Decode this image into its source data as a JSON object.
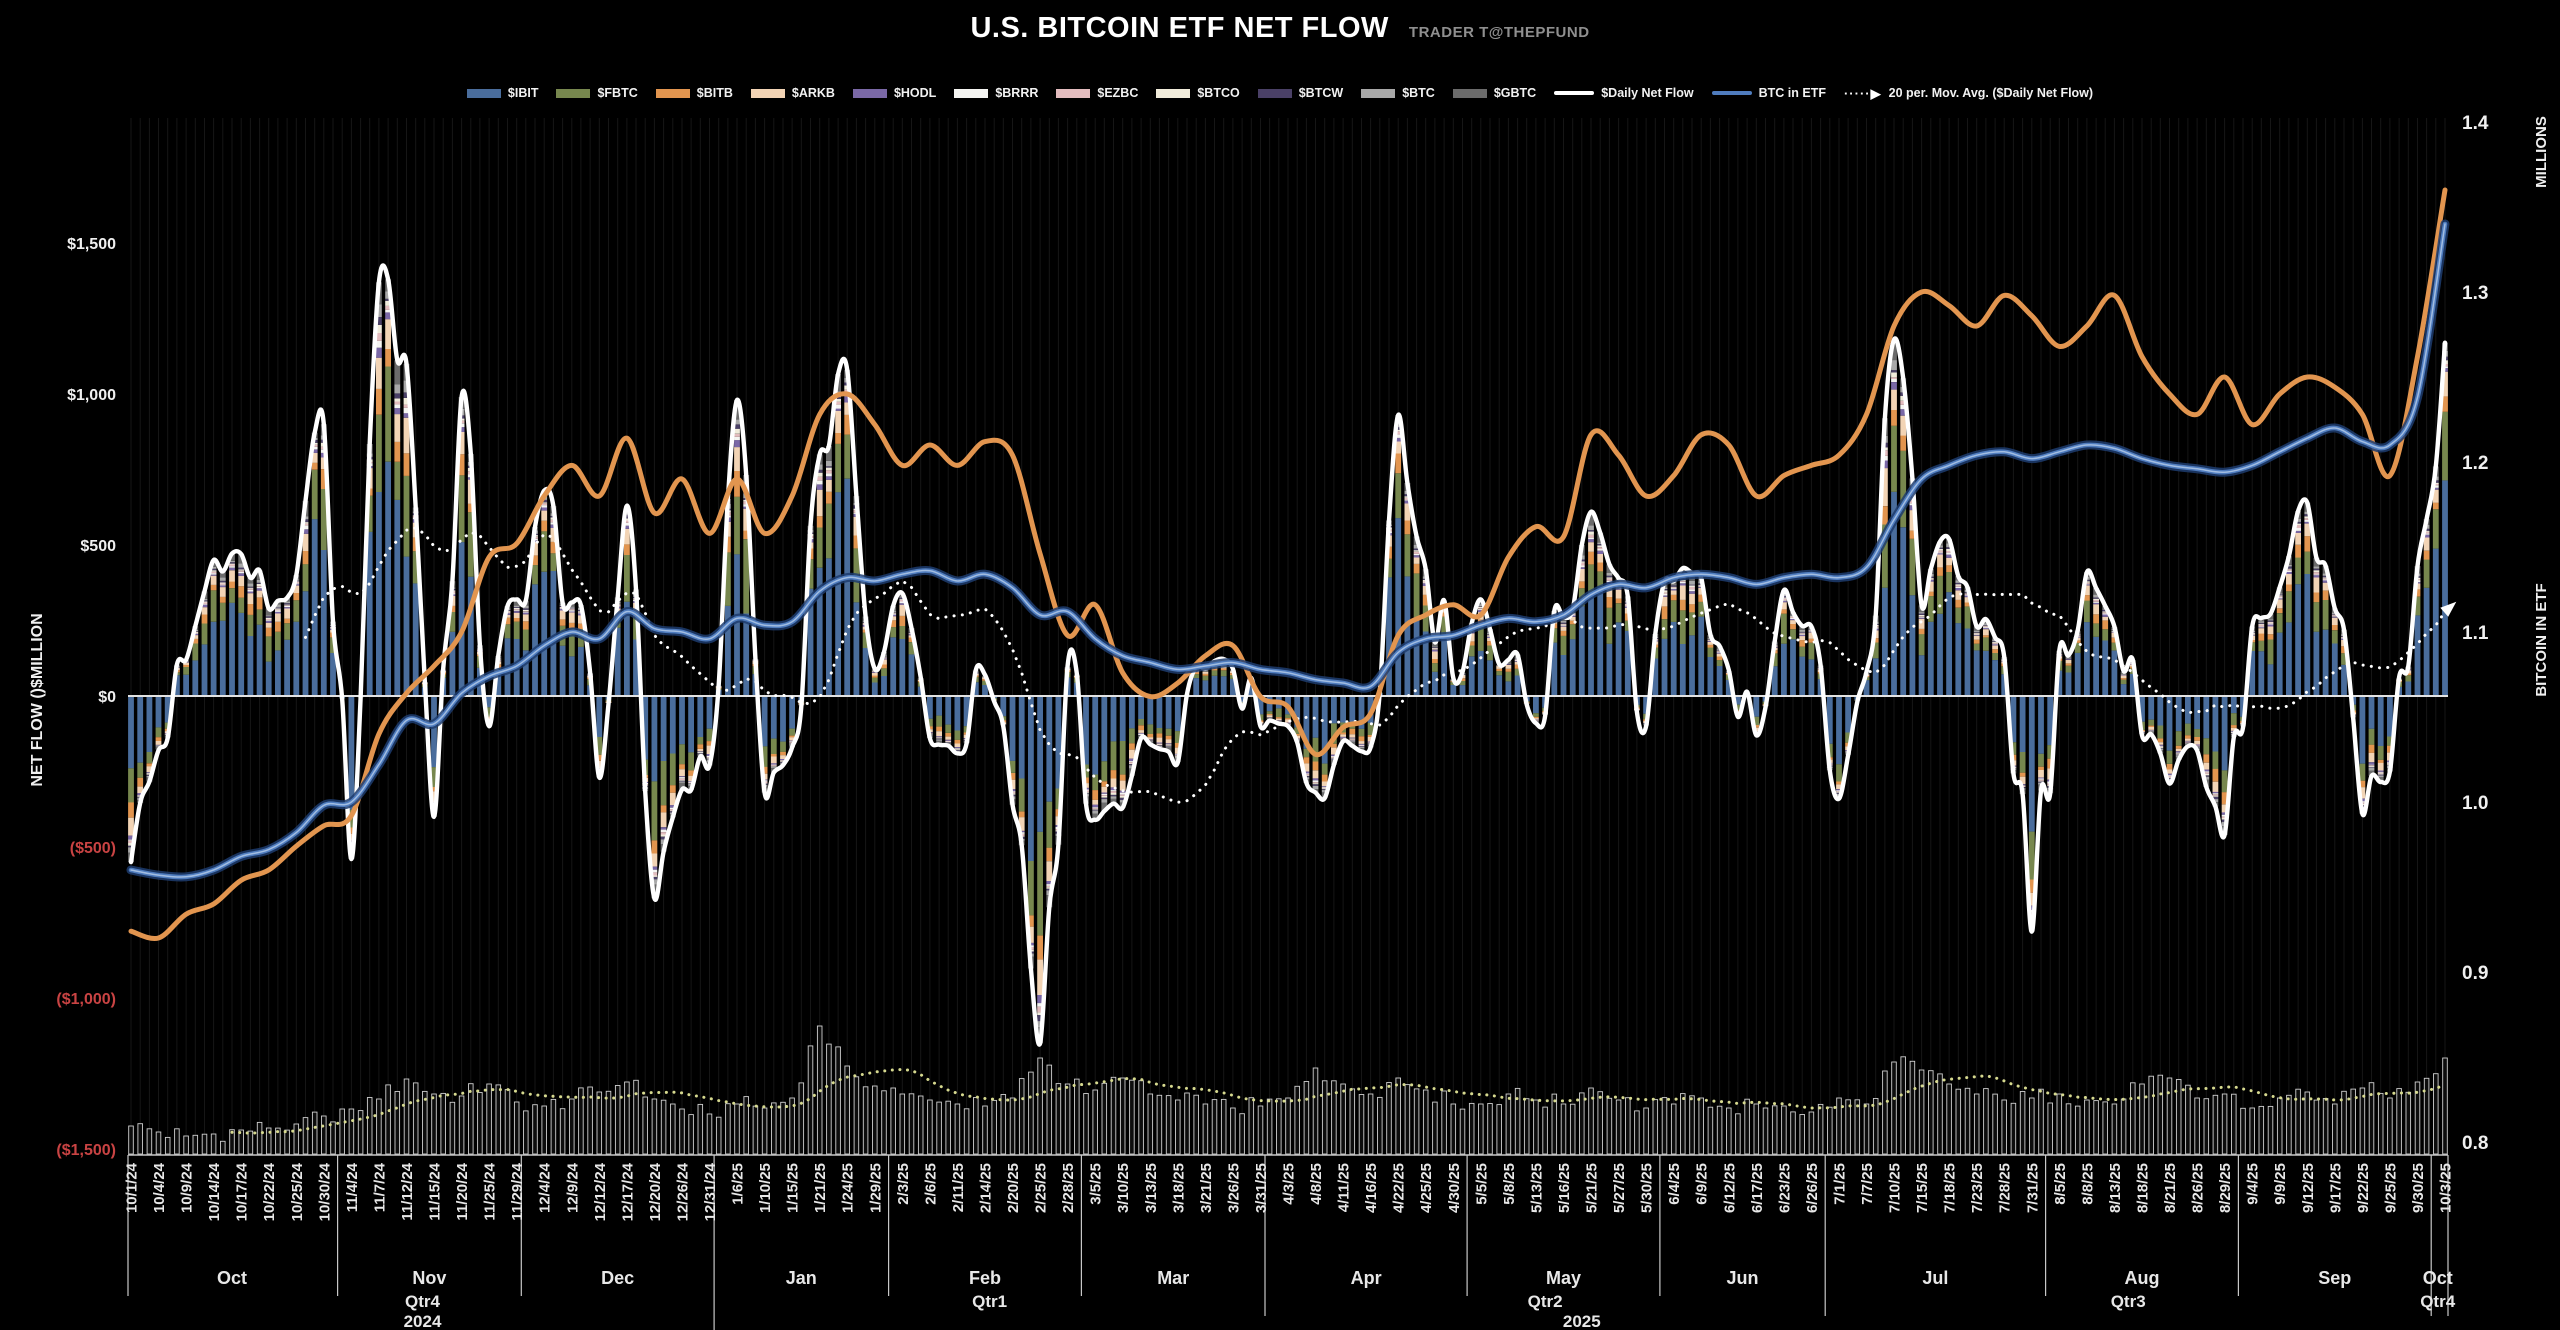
{
  "header": {
    "title": "U.S. BITCOIN ETF NET FLOW",
    "credit": "TRADER T@THEPFUND"
  },
  "legend": {
    "items": [
      {
        "label": "$IBIT",
        "color": "#4a6d9c",
        "swatch": "bar"
      },
      {
        "label": "$FBTC",
        "color": "#77874e",
        "swatch": "bar"
      },
      {
        "label": "$BITB",
        "color": "#e2954f",
        "swatch": "bar"
      },
      {
        "label": "$ARKB",
        "color": "#f2d4b5",
        "swatch": "bar"
      },
      {
        "label": "$HODL",
        "color": "#7a68a6",
        "swatch": "bar"
      },
      {
        "label": "$BRRR",
        "color": "#f5f5f2",
        "swatch": "bar"
      },
      {
        "label": "$EZBC",
        "color": "#e3bcbe",
        "swatch": "bar"
      },
      {
        "label": "$BTCO",
        "color": "#f1ecdb",
        "swatch": "bar"
      },
      {
        "label": "$BTCW",
        "color": "#4a4066",
        "swatch": "bar"
      },
      {
        "label": "$BTC",
        "color": "#a8a8a8",
        "swatch": "bar"
      },
      {
        "label": "$GBTC",
        "color": "#6b6b6b",
        "swatch": "bar"
      },
      {
        "label": "$Daily Net Flow",
        "color": "#ffffff",
        "swatch": "line"
      },
      {
        "label": "BTC in ETF",
        "color": "#4f7cbe",
        "swatch": "line"
      },
      {
        "label": "20 per. Mov. Avg. ($Daily Net Flow)",
        "color": "#ffffff",
        "swatch": "dotted-arrow"
      }
    ]
  },
  "colors": {
    "background": "#000000",
    "text": "#e8e8e8",
    "positive_label": "#f0f0f0",
    "negative_label": "#c94343",
    "grid": "#161616",
    "zero_line": "#e3e3e3",
    "axis_line": "#c8c8c8",
    "daily_flow_line": "#ffffff",
    "btc_in_etf_line": "#4f7cbe",
    "btc_in_etf_glow": "#1d3c6e",
    "btc_in_etf_core": "#cfe0f5",
    "orange_line": "#e2954f",
    "ma_dotted": "#ffffff",
    "volume_outline": "#cfcfcf",
    "volume_fill": "#0d0d0d",
    "volume_ma_dotted": "#d6d98f"
  },
  "chart_data": {
    "type": "combo",
    "days_per_tick": 3,
    "x_tick_dates": [
      "10/1/24",
      "10/4/24",
      "10/9/24",
      "10/14/24",
      "10/17/24",
      "10/22/24",
      "10/25/24",
      "10/30/24",
      "11/4/24",
      "11/7/24",
      "11/12/24",
      "11/15/24",
      "11/20/24",
      "11/25/24",
      "11/29/24",
      "12/4/24",
      "12/9/24",
      "12/12/24",
      "12/17/24",
      "12/20/24",
      "12/26/24",
      "12/31/24",
      "1/6/25",
      "1/10/25",
      "1/15/25",
      "1/21/25",
      "1/24/25",
      "1/29/25",
      "2/3/25",
      "2/6/25",
      "2/11/25",
      "2/14/25",
      "2/20/25",
      "2/25/25",
      "2/28/25",
      "3/5/25",
      "3/10/25",
      "3/13/25",
      "3/18/25",
      "3/21/25",
      "3/26/25",
      "3/31/25",
      "4/3/25",
      "4/8/25",
      "4/11/25",
      "4/16/25",
      "4/22/25",
      "4/25/25",
      "4/30/25",
      "5/5/25",
      "5/8/25",
      "5/13/25",
      "5/16/25",
      "5/21/25",
      "5/27/25",
      "5/30/25",
      "6/4/25",
      "6/9/25",
      "6/12/25",
      "6/17/25",
      "6/23/25",
      "6/26/25",
      "7/1/25",
      "7/7/25",
      "7/10/25",
      "7/15/25",
      "7/18/25",
      "7/23/25",
      "7/28/25",
      "7/31/25",
      "8/5/25",
      "8/8/25",
      "8/13/25",
      "8/18/25",
      "8/21/25",
      "8/26/25",
      "8/29/25",
      "9/4/25",
      "9/9/25",
      "9/12/25",
      "9/17/25",
      "9/22/25",
      "9/25/25",
      "9/30/25",
      "10/3/25"
    ],
    "left_axis": {
      "title": "NET FLOW ()$MILLION",
      "range": [
        -1500,
        1500
      ],
      "ticks": [
        {
          "label": "$1,500",
          "value": 1500
        },
        {
          "label": "$1,000",
          "value": 1000
        },
        {
          "label": "$500",
          "value": 500
        },
        {
          "label": "$0",
          "value": 0
        },
        {
          "label": "($500)",
          "value": -500
        },
        {
          "label": "($1,000)",
          "value": -1000
        },
        {
          "label": "($1,500)",
          "value": -1500
        }
      ]
    },
    "right_axis": {
      "title_top": "MILLIONS",
      "title_bottom": "BITCOIN IN ETF",
      "range": [
        0.8,
        1.4
      ],
      "ticks": [
        {
          "label": "1.4",
          "value": 1.4
        },
        {
          "label": "1.3",
          "value": 1.3
        },
        {
          "label": "1.2",
          "value": 1.2
        },
        {
          "label": "1.1",
          "value": 1.1
        },
        {
          "label": "1.0",
          "value": 1.0
        },
        {
          "label": "0.9",
          "value": 0.9
        },
        {
          "label": "0.8",
          "value": 0.8
        }
      ]
    },
    "x_axis": {
      "months": [
        {
          "label": "Oct",
          "center_day": 11
        },
        {
          "label": "Nov",
          "center_day": 32.5
        },
        {
          "label": "Dec",
          "center_day": 53
        },
        {
          "label": "Jan",
          "center_day": 73
        },
        {
          "label": "Feb",
          "center_day": 93
        },
        {
          "label": "Mar",
          "center_day": 113.5
        },
        {
          "label": "Apr",
          "center_day": 134.5
        },
        {
          "label": "May",
          "center_day": 156
        },
        {
          "label": "Jun",
          "center_day": 175.5
        },
        {
          "label": "Jul",
          "center_day": 196.5
        },
        {
          "label": "Aug",
          "center_day": 219
        },
        {
          "label": "Sep",
          "center_day": 240
        },
        {
          "label": "Oct",
          "center_day": 251.2
        }
      ],
      "quarters": [
        {
          "label": "Qtr4",
          "center_day": 31.75
        },
        {
          "label": "Qtr1",
          "center_day": 93.5
        },
        {
          "label": "Qtr2",
          "center_day": 154
        },
        {
          "label": "Qtr3",
          "center_day": 217.5
        },
        {
          "label": "Qtr4",
          "center_day": 251.2
        }
      ],
      "years": [
        {
          "label": "2024",
          "center_day": 31.75
        },
        {
          "label": "2025",
          "center_day": 158
        }
      ],
      "month_boundaries_days": [
        22.5,
        42.5,
        82.5,
        103.5,
        145.5,
        166.5,
        208.5,
        229.5
      ],
      "quarter_boundaries_days": [
        123.5,
        184.5,
        250.5
      ],
      "year_boundaries_days": [
        63.5
      ]
    },
    "bar_components": [
      {
        "ticker": "$IBIT",
        "color": "#4a6d9c",
        "share": 0.56
      },
      {
        "ticker": "$FBTC",
        "color": "#77874e",
        "share": 0.18
      },
      {
        "ticker": "$BITB",
        "color": "#e2954f",
        "share": 0.06
      },
      {
        "ticker": "$ARKB",
        "color": "#f2d4b5",
        "share": 0.07
      },
      {
        "ticker": "$HODL",
        "color": "#7a68a6",
        "share": 0.015
      },
      {
        "ticker": "$BRRR",
        "color": "#f5f5f2",
        "share": 0.01
      },
      {
        "ticker": "$EZBC",
        "color": "#e3bcbe",
        "share": 0.01
      },
      {
        "ticker": "$BTCO",
        "color": "#f1ecdb",
        "share": 0.01
      },
      {
        "ticker": "$BTCW",
        "color": "#4a4066",
        "share": 0.01
      },
      {
        "ticker": "$BTC",
        "color": "#a8a8a8",
        "share": 0.02
      },
      {
        "ticker": "$GBTC",
        "color": "#6b6b6b",
        "share": 0.045
      }
    ],
    "series": [
      {
        "id": "daily_net_flow",
        "name": "$Daily Net Flow",
        "kind": "line",
        "axis": "left",
        "color": "#ffffff",
        "values": [
          -550,
          -180,
          120,
          450,
          470,
          290,
          400,
          900,
          -540,
          1370,
          1100,
          -400,
          990,
          -100,
          320,
          680,
          310,
          -270,
          630,
          -670,
          -310,
          -230,
          980,
          -320,
          -170,
          800,
          1080,
          90,
          340,
          -140,
          -190,
          70,
          -360,
          -1150,
          100,
          -410,
          -370,
          -160,
          -220,
          90,
          90,
          -100,
          -100,
          -320,
          -150,
          -170,
          930,
          420,
          60,
          320,
          120,
          -90,
          260,
          610,
          390,
          -100,
          380,
          390,
          86,
          -130,
          350,
          230,
          -340,
          80,
          1180,
          300,
          520,
          230,
          130,
          -780,
          150,
          410,
          230,
          -130,
          -290,
          -180,
          -460,
          230,
          360,
          640,
          290,
          -390,
          -250,
          430,
          1170
        ]
      },
      {
        "id": "btc_in_etf",
        "name": "BTC in ETF",
        "kind": "line",
        "axis": "right",
        "color": "#4f7cbe",
        "values": [
          0.96,
          0.957,
          0.956,
          0.96,
          0.968,
          0.972,
          0.982,
          0.998,
          1.0,
          1.022,
          1.048,
          1.046,
          1.064,
          1.074,
          1.08,
          1.092,
          1.1,
          1.096,
          1.112,
          1.102,
          1.1,
          1.096,
          1.108,
          1.104,
          1.106,
          1.124,
          1.132,
          1.13,
          1.134,
          1.136,
          1.13,
          1.134,
          1.126,
          1.11,
          1.112,
          1.096,
          1.086,
          1.082,
          1.078,
          1.08,
          1.082,
          1.078,
          1.076,
          1.072,
          1.07,
          1.068,
          1.088,
          1.096,
          1.098,
          1.104,
          1.108,
          1.106,
          1.11,
          1.122,
          1.128,
          1.126,
          1.132,
          1.134,
          1.132,
          1.128,
          1.132,
          1.134,
          1.132,
          1.138,
          1.166,
          1.19,
          1.198,
          1.204,
          1.206,
          1.202,
          1.206,
          1.21,
          1.208,
          1.202,
          1.198,
          1.196,
          1.194,
          1.198,
          1.206,
          1.214,
          1.22,
          1.212,
          1.21,
          1.238,
          1.34
        ]
      },
      {
        "id": "orange_trend",
        "name": "orange trend line",
        "kind": "line",
        "axis": "right",
        "color": "#e2954f",
        "values": [
          0.924,
          0.92,
          0.934,
          0.94,
          0.954,
          0.96,
          0.974,
          0.986,
          0.992,
          1.04,
          1.064,
          1.08,
          1.1,
          1.144,
          1.152,
          1.18,
          1.198,
          1.18,
          1.214,
          1.17,
          1.19,
          1.158,
          1.19,
          1.158,
          1.18,
          1.228,
          1.24,
          1.222,
          1.198,
          1.21,
          1.198,
          1.212,
          1.204,
          1.146,
          1.098,
          1.116,
          1.076,
          1.062,
          1.07,
          1.086,
          1.092,
          1.062,
          1.056,
          1.028,
          1.044,
          1.052,
          1.098,
          1.11,
          1.116,
          1.11,
          1.144,
          1.162,
          1.156,
          1.216,
          1.204,
          1.18,
          1.192,
          1.216,
          1.21,
          1.18,
          1.192,
          1.198,
          1.204,
          1.228,
          1.28,
          1.3,
          1.292,
          1.28,
          1.298,
          1.286,
          1.268,
          1.28,
          1.298,
          1.262,
          1.24,
          1.228,
          1.25,
          1.222,
          1.24,
          1.25,
          1.244,
          1.228,
          1.192,
          1.262,
          1.36
        ]
      },
      {
        "id": "ma20",
        "name": "20 per. Mov. Avg. ($Daily Net Flow)",
        "kind": "dotted-line",
        "axis": "left",
        "color": "#ffffff",
        "derived_from": "daily_net_flow",
        "window": 20
      },
      {
        "id": "etf_bars",
        "name": "ETF daily net flow stacked bars",
        "kind": "stacked-bar",
        "axis": "left"
      },
      {
        "id": "bottom_histogram",
        "name": "bottom histogram",
        "kind": "bar",
        "axis": "none",
        "values": [
          28,
          22,
          18,
          20,
          24,
          26,
          30,
          38,
          45,
          55,
          75,
          60,
          58,
          70,
          52,
          48,
          55,
          62,
          72,
          55,
          45,
          40,
          50,
          46,
          56,
          128,
          88,
          68,
          60,
          54,
          50,
          48,
          56,
          96,
          70,
          64,
          76,
          60,
          54,
          50,
          46,
          48,
          56,
          86,
          70,
          60,
          76,
          64,
          50,
          50,
          60,
          54,
          50,
          66,
          54,
          46,
          50,
          56,
          46,
          50,
          48,
          42,
          56,
          50,
          92,
          84,
          70,
          60,
          54,
          56,
          60,
          54,
          50,
          70,
          76,
          56,
          60,
          46,
          56,
          62,
          50,
          66,
          56,
          72,
          96
        ]
      },
      {
        "id": "bottom_histogram_ma",
        "name": "bottom histogram moving average",
        "kind": "dotted-line",
        "color": "#d6d98f",
        "derived_from": "bottom_histogram",
        "window": 12
      }
    ]
  }
}
